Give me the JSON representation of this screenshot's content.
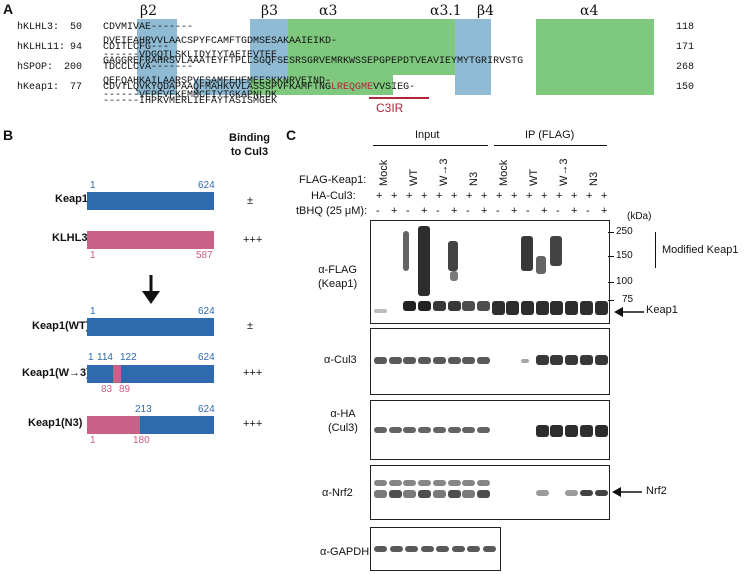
{
  "panels": {
    "a": "A",
    "b": "B",
    "c": "C"
  },
  "colors": {
    "helix": "#7fc97f",
    "strand": "#8fbcd4",
    "keap1_bar": "#2e6aad",
    "klhl3_bar": "#c96088",
    "c3ir": "#b0253a",
    "text": "#111111"
  },
  "panel_a": {
    "ss_labels": [
      {
        "text": "β2",
        "color": "#1f9b9b"
      },
      {
        "text": "β3",
        "color": "#1f9b9b"
      },
      {
        "text": "α3",
        "color": "#2e9e3a"
      },
      {
        "text": "α3.1",
        "color": "#2e9e3a"
      },
      {
        "text": "β4",
        "color": "#1f9b9b"
      },
      {
        "text": "α4",
        "color": "#2e9e3a"
      }
    ],
    "rows": [
      {
        "name": "hKLHL3:",
        "start": "50",
        "seq": "CDVMIVAE-------DVEIEAHRVVLAACSPYFCAMFTGDMSESAKAAIEIKD-------VDGQTLSKLIDYIYTAEIEVTEE",
        "end": "118"
      },
      {
        "name": "hKLHL11:",
        "start": "94",
        "seq": "CDITLCFG---GAGGREFRAHRSVLAAATEYFTPLLSGQFSESRSGRVEMRKWSSEPGPEPDTVEAVIEYMYTGRIRVSTG",
        "end": "171"
      },
      {
        "name": "hSPOP:",
        "start": "200",
        "seq": "TDCCLCVA-------QEFQAHKAILAARSPVFSAMFEHEMEESKKNRVEIND-------VEPEVFKEMMCFIYTGKAPNLDK",
        "end": "268"
      },
      {
        "name": "hKeap1:",
        "start": "77",
        "seq": "CDVTLQVKYQDAPAAQFMAHKVVLASSSPVFKAMFTNGLREQGMEVVSIEG-------IHPKVMERLIEFAYTASISMGEK",
        "end": "150"
      }
    ],
    "c3ir_label": "C3IR"
  },
  "panel_b": {
    "header": "Binding\nto Cul3",
    "constructs": [
      {
        "name": "Keap1",
        "binding": "±",
        "start": "1",
        "end": "624"
      },
      {
        "name": "KLHL3",
        "binding": "+++",
        "start": "1",
        "end": "587"
      },
      {
        "name": "Keap1(WT)",
        "binding": "±",
        "start": "1",
        "end": "624"
      },
      {
        "name": "Keap1(W→3)",
        "binding": "+++",
        "top_nums": [
          "1",
          "114",
          "122",
          "624"
        ],
        "bottom_nums": [
          "83",
          "89"
        ]
      },
      {
        "name": "Keap1(N3)",
        "binding": "+++",
        "top_nums": [
          "213",
          "624"
        ],
        "bottom_nums": [
          "1",
          "180"
        ]
      }
    ]
  },
  "panel_c": {
    "input_label": "Input",
    "ip_label": "IP (FLAG)",
    "flag_row_label": "FLAG-Keap1:",
    "lanes": [
      "Mock",
      "WT",
      "W→3",
      "N3",
      "Mock",
      "WT",
      "W→3",
      "N3"
    ],
    "ha_row_label": "HA-Cul3:",
    "ha_signs": [
      "+",
      "+",
      "+",
      "+",
      "+",
      "+",
      "+",
      "+",
      "+",
      "+",
      "+",
      "+",
      "+",
      "+",
      "+",
      "+"
    ],
    "tbhq_row_label": "tBHQ (25 μM):",
    "tbhq_signs": [
      "-",
      "+",
      "-",
      "+",
      "-",
      "+",
      "-",
      "+",
      "-",
      "+",
      "-",
      "+",
      "-",
      "+",
      "-",
      "+"
    ],
    "kda_label": "(kDa)",
    "markers": [
      "250",
      "150",
      "100",
      "75"
    ],
    "modified_label": "Modified Keap1",
    "keap1_arrow_label": "Keap1",
    "nrf2_arrow_label": "Nrf2",
    "blots": [
      {
        "label": "α-FLAG\n(Keap1)"
      },
      {
        "label": "α-Cul3"
      },
      {
        "label": "α-HA\n(Cul3)"
      },
      {
        "label": "α-Nrf2"
      },
      {
        "label": "α-GAPDH"
      }
    ]
  }
}
